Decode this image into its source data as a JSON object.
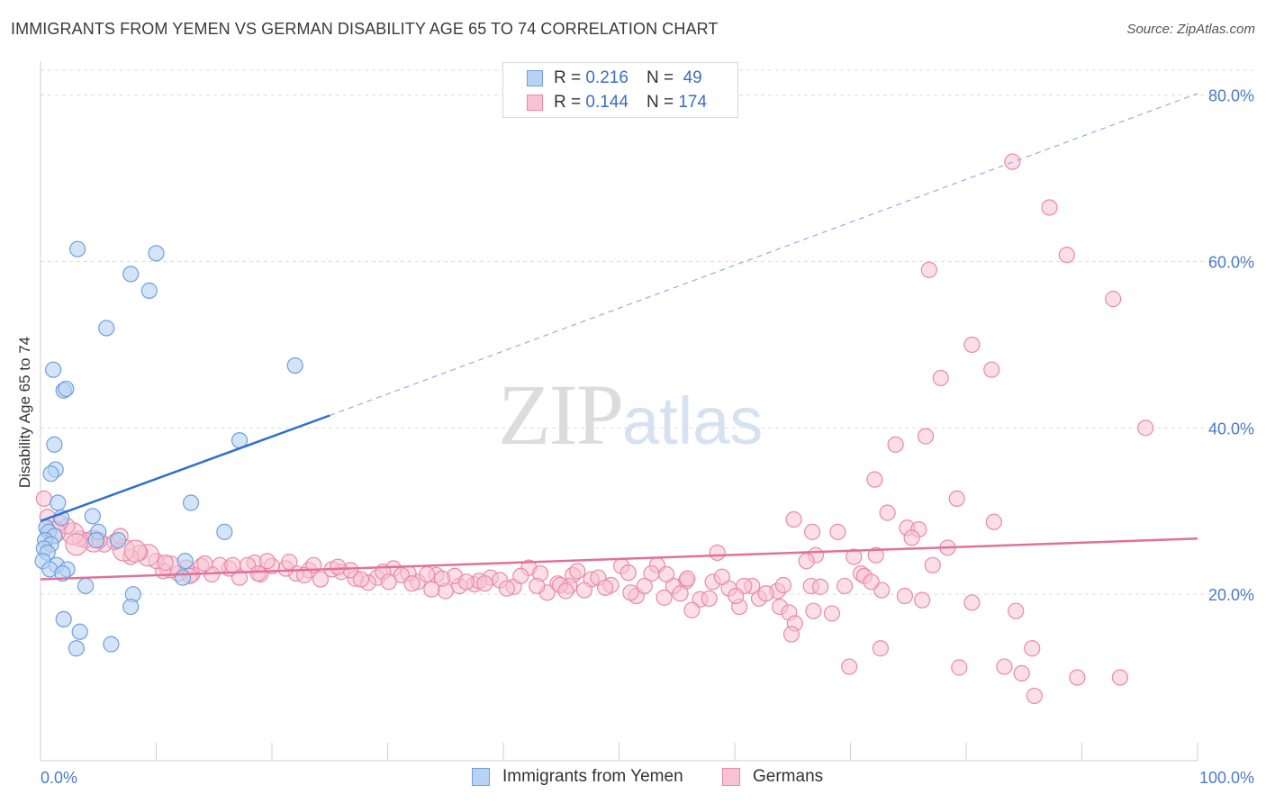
{
  "header": {
    "title": "IMMIGRANTS FROM YEMEN VS GERMAN DISABILITY AGE 65 TO 74 CORRELATION CHART",
    "source": "Source: ZipAtlas.com"
  },
  "watermark": {
    "zip": "ZIP",
    "atlas": "atlas"
  },
  "legend": {
    "rows": [
      {
        "r_label": "R =",
        "r_value": "0.216",
        "n_label": "N =",
        "n_value": "49"
      },
      {
        "r_label": "R =",
        "r_value": "0.144",
        "n_label": "N =",
        "n_value": "174"
      }
    ]
  },
  "bottom_legend": [
    "Immigrants from Yemen",
    "Germans"
  ],
  "colors": {
    "blue_fill": "#b8d2f3",
    "blue_stroke": "#6f9fdc",
    "blue_line": "#2e6fcf",
    "pink_fill": "#f7c3d3",
    "pink_stroke": "#e98aa8",
    "pink_line": "#e2709a",
    "grid": "#dddddd",
    "axis_label": "#4a7cc7"
  },
  "chart_data": {
    "type": "scatter",
    "title": "IMMIGRANTS FROM YEMEN VS GERMAN DISABILITY AGE 65 TO 74 CORRELATION CHART",
    "xlabel": "",
    "ylabel": "Disability Age 65 to 74",
    "xlim": [
      0,
      100
    ],
    "ylim": [
      0,
      83
    ],
    "x_tick_labels": [
      "0.0%",
      "100.0%"
    ],
    "y_ticks": [
      20,
      40,
      60,
      80
    ],
    "y_tick_labels": [
      "20.0%",
      "40.0%",
      "60.0%",
      "80.0%"
    ],
    "grid": true,
    "legend_position": "bottom",
    "series": [
      {
        "name": "Immigrants from Yemen",
        "r": 0.216,
        "n": 49,
        "trend": {
          "x0": 0,
          "y0": 28.8,
          "x1": 25,
          "y1": 41.5,
          "dashed_to_x": 100,
          "dashed_to_y": 80.2
        },
        "points": [
          [
            3.2,
            61.5
          ],
          [
            10,
            61
          ],
          [
            7.8,
            58.5
          ],
          [
            9.4,
            56.5
          ],
          [
            5.7,
            52
          ],
          [
            22,
            47.5
          ],
          [
            1.1,
            47
          ],
          [
            2,
            44.5
          ],
          [
            2.2,
            44.7
          ],
          [
            17.2,
            38.5
          ],
          [
            1.2,
            38
          ],
          [
            1.3,
            35
          ],
          [
            0.9,
            34.5
          ],
          [
            13,
            31
          ],
          [
            1.5,
            31
          ],
          [
            1.8,
            29.2
          ],
          [
            4.5,
            29.4
          ],
          [
            0.5,
            28
          ],
          [
            0.7,
            27.5
          ],
          [
            1.2,
            27
          ],
          [
            5,
            27.5
          ],
          [
            6.7,
            26.5
          ],
          [
            0.4,
            26.5
          ],
          [
            0.9,
            26
          ],
          [
            4.8,
            26.5
          ],
          [
            15.9,
            27.5
          ],
          [
            0.3,
            25.5
          ],
          [
            0.6,
            25
          ],
          [
            0.2,
            24
          ],
          [
            1.4,
            23.5
          ],
          [
            2.3,
            23
          ],
          [
            12.5,
            24
          ],
          [
            0.8,
            23
          ],
          [
            1.9,
            22.5
          ],
          [
            12.3,
            22
          ],
          [
            3.9,
            21
          ],
          [
            8,
            20
          ],
          [
            7.8,
            18.5
          ],
          [
            2,
            17
          ],
          [
            3.4,
            15.5
          ],
          [
            3.1,
            13.5
          ],
          [
            6.1,
            14
          ]
        ]
      },
      {
        "name": "Germans",
        "r": 0.144,
        "n": 174,
        "trend": {
          "x0": 0,
          "y0": 21.8,
          "x1": 100,
          "y1": 26.7
        },
        "points": [
          [
            84,
            72
          ],
          [
            87.2,
            66.5
          ],
          [
            88.7,
            60.8
          ],
          [
            76.8,
            59
          ],
          [
            92.7,
            55.5
          ],
          [
            80.5,
            50
          ],
          [
            82.2,
            47
          ],
          [
            77.8,
            46
          ],
          [
            95.5,
            40
          ],
          [
            76.5,
            39
          ],
          [
            73.9,
            38
          ],
          [
            72.1,
            33.8
          ],
          [
            79.2,
            31.5
          ],
          [
            73.2,
            29.8
          ],
          [
            65.1,
            29
          ],
          [
            82.4,
            28.7
          ],
          [
            74.9,
            28
          ],
          [
            75.9,
            27.8
          ],
          [
            66.7,
            27.5
          ],
          [
            68.9,
            27.5
          ],
          [
            75.3,
            26.8
          ],
          [
            58.5,
            25
          ],
          [
            67,
            24.7
          ],
          [
            70.3,
            24.5
          ],
          [
            72.2,
            24.7
          ],
          [
            66.2,
            24
          ],
          [
            77.1,
            23.5
          ],
          [
            70.9,
            22.5
          ],
          [
            71.2,
            22.2
          ],
          [
            50.2,
            23.4
          ],
          [
            53.3,
            23.5
          ],
          [
            66.6,
            21
          ],
          [
            72.7,
            20.5
          ],
          [
            74.7,
            19.8
          ],
          [
            63.7,
            20.4
          ],
          [
            61.5,
            21
          ],
          [
            58.1,
            21.5
          ],
          [
            55.8,
            21.6
          ],
          [
            52.8,
            22.5
          ],
          [
            54.7,
            21
          ],
          [
            62.1,
            19.5
          ],
          [
            80.5,
            19
          ],
          [
            60.4,
            18.5
          ],
          [
            63.9,
            18.5
          ],
          [
            64.7,
            17.8
          ],
          [
            66.8,
            18
          ],
          [
            68.4,
            17.7
          ],
          [
            65.2,
            16.5
          ],
          [
            64.9,
            15.2
          ],
          [
            72.6,
            13.5
          ],
          [
            69.9,
            11.3
          ],
          [
            79.4,
            11.2
          ],
          [
            84.3,
            18
          ],
          [
            83.3,
            11.3
          ],
          [
            84.8,
            10.5
          ],
          [
            85.7,
            13.5
          ],
          [
            89.6,
            10
          ],
          [
            93.3,
            10
          ],
          [
            85.9,
            7.8
          ],
          [
            42.2,
            23.2
          ],
          [
            46,
            22.3
          ],
          [
            47.6,
            21.8
          ],
          [
            44.7,
            21.3
          ],
          [
            49.3,
            21.1
          ],
          [
            51.5,
            19.8
          ],
          [
            55.3,
            20.1
          ],
          [
            57,
            19.4
          ],
          [
            59.5,
            20.7
          ],
          [
            60.8,
            21
          ],
          [
            57.8,
            19.5
          ],
          [
            56.3,
            18.1
          ],
          [
            53.9,
            19.6
          ],
          [
            47,
            20.5
          ],
          [
            43.8,
            20.2
          ],
          [
            45.7,
            21
          ],
          [
            40.9,
            20.9
          ],
          [
            38.9,
            22
          ],
          [
            37.5,
            21.2
          ],
          [
            36.2,
            21
          ],
          [
            35,
            20.4
          ],
          [
            33.8,
            20.6
          ],
          [
            32.6,
            21.5
          ],
          [
            34.2,
            22.3
          ],
          [
            31.8,
            22.5
          ],
          [
            30.5,
            23.1
          ],
          [
            29.1,
            22
          ],
          [
            28.3,
            21.4
          ],
          [
            27.2,
            21.9
          ],
          [
            26,
            22.7
          ],
          [
            25.2,
            23
          ],
          [
            24.2,
            21.8
          ],
          [
            23.2,
            22.9
          ],
          [
            22.1,
            22.5
          ],
          [
            21.2,
            23.1
          ],
          [
            20,
            23.4
          ],
          [
            19,
            22.4
          ],
          [
            18.5,
            23.8
          ],
          [
            17.2,
            22
          ],
          [
            16.3,
            23.1
          ],
          [
            15.5,
            23.5
          ],
          [
            14.8,
            22.4
          ],
          [
            13.9,
            23.4
          ],
          [
            13.1,
            22.4
          ],
          [
            12.6,
            23.2
          ],
          [
            11.9,
            22.5
          ],
          [
            11.2,
            23.3
          ],
          [
            10.6,
            22.8
          ],
          [
            10,
            24
          ],
          [
            9.3,
            24.7
          ],
          [
            8.6,
            25
          ],
          [
            7.8,
            24.5
          ],
          [
            7.2,
            25.3
          ],
          [
            6.4,
            26.3
          ],
          [
            5.5,
            26
          ],
          [
            4.6,
            26.4
          ],
          [
            3.9,
            26.5
          ],
          [
            3.4,
            26.7
          ],
          [
            2.8,
            27.3
          ],
          [
            2.3,
            28.2
          ],
          [
            1.7,
            28.6
          ],
          [
            1.2,
            27.5
          ],
          [
            0.6,
            29.3
          ],
          [
            0.3,
            31.5
          ],
          [
            3.1,
            26
          ],
          [
            5.1,
            26.5
          ],
          [
            6.9,
            27
          ],
          [
            8.2,
            25.2
          ],
          [
            10.8,
            23.8
          ],
          [
            14.2,
            23.7
          ],
          [
            17.9,
            23.5
          ],
          [
            19.6,
            24
          ],
          [
            21.5,
            23.9
          ],
          [
            23.6,
            23.5
          ],
          [
            26.8,
            22.9
          ],
          [
            29.6,
            22.7
          ],
          [
            31.2,
            22.3
          ],
          [
            33.4,
            22.4
          ],
          [
            35.8,
            22.2
          ],
          [
            37.9,
            21.6
          ],
          [
            39.7,
            21.7
          ],
          [
            41.5,
            22.2
          ],
          [
            43.2,
            22.5
          ],
          [
            44.9,
            21.1
          ],
          [
            46.4,
            22.8
          ],
          [
            48.2,
            22
          ],
          [
            50.8,
            22.6
          ],
          [
            52.2,
            21
          ],
          [
            54.1,
            22.4
          ],
          [
            55.9,
            21.9
          ],
          [
            58.9,
            22.1
          ],
          [
            60.1,
            19.8
          ],
          [
            62.7,
            20.1
          ],
          [
            64.2,
            21.1
          ],
          [
            67.4,
            20.9
          ],
          [
            69.5,
            21
          ],
          [
            71.8,
            21.5
          ],
          [
            76.2,
            19.3
          ],
          [
            78.4,
            25.6
          ],
          [
            12.9,
            22.2
          ],
          [
            16.6,
            23.5
          ],
          [
            18.8,
            22.5
          ],
          [
            22.8,
            22.3
          ],
          [
            25.7,
            23.3
          ],
          [
            27.7,
            21.8
          ],
          [
            30.1,
            21.5
          ],
          [
            32.1,
            21.3
          ],
          [
            34.7,
            21.9
          ],
          [
            36.8,
            21.5
          ],
          [
            38.4,
            21.3
          ],
          [
            40.3,
            20.7
          ],
          [
            42.9,
            21
          ],
          [
            45.4,
            20.4
          ],
          [
            48.8,
            20.8
          ],
          [
            51,
            20.2
          ]
        ]
      }
    ]
  }
}
